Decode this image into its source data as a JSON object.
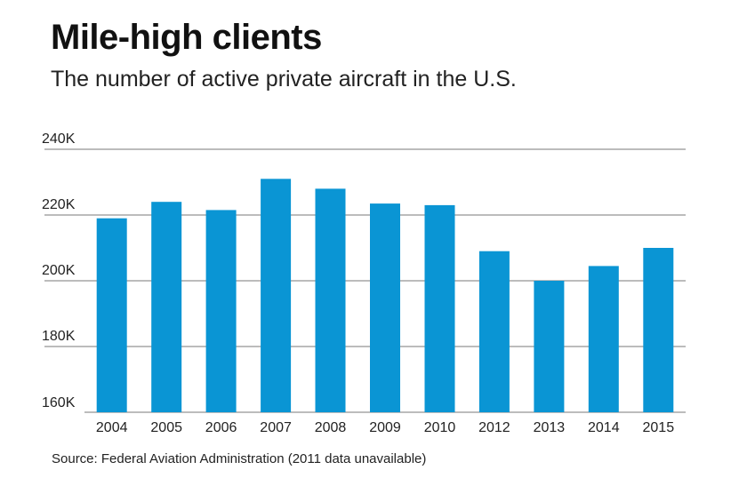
{
  "chart_data": {
    "type": "bar",
    "title": "Mile-high clients",
    "subtitle": "The number of active private aircraft in the U.S.",
    "source": "Source: Federal Aviation Administration (2011 data unavailable)",
    "categories": [
      "2004",
      "2005",
      "2006",
      "2007",
      "2008",
      "2009",
      "2010",
      "2012",
      "2013",
      "2014",
      "2015"
    ],
    "values": [
      219000,
      224000,
      221500,
      231000,
      228000,
      223500,
      223000,
      209000,
      200000,
      204500,
      210000
    ],
    "ylim": [
      160000,
      240000
    ],
    "yticks": [
      160000,
      180000,
      200000,
      220000,
      240000
    ],
    "ytick_labels": [
      "160K",
      "180K",
      "200K",
      "220K",
      "240K"
    ],
    "xlabel": "",
    "ylabel": "",
    "grid": true,
    "bar_color": "#0a95d4",
    "grid_color": "#7a7a7a"
  }
}
